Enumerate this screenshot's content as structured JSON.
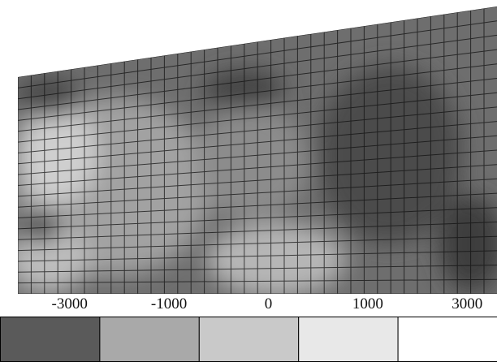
{
  "chart_data": {
    "type": "contour",
    "colorbar": {
      "ticks": [
        -3000,
        -1000,
        0,
        1000,
        3000
      ],
      "colors": [
        "#5a5a5a",
        "#a9a9a9",
        "#c9c9c9",
        "#e8e8e8",
        "#ffffff"
      ]
    }
  }
}
